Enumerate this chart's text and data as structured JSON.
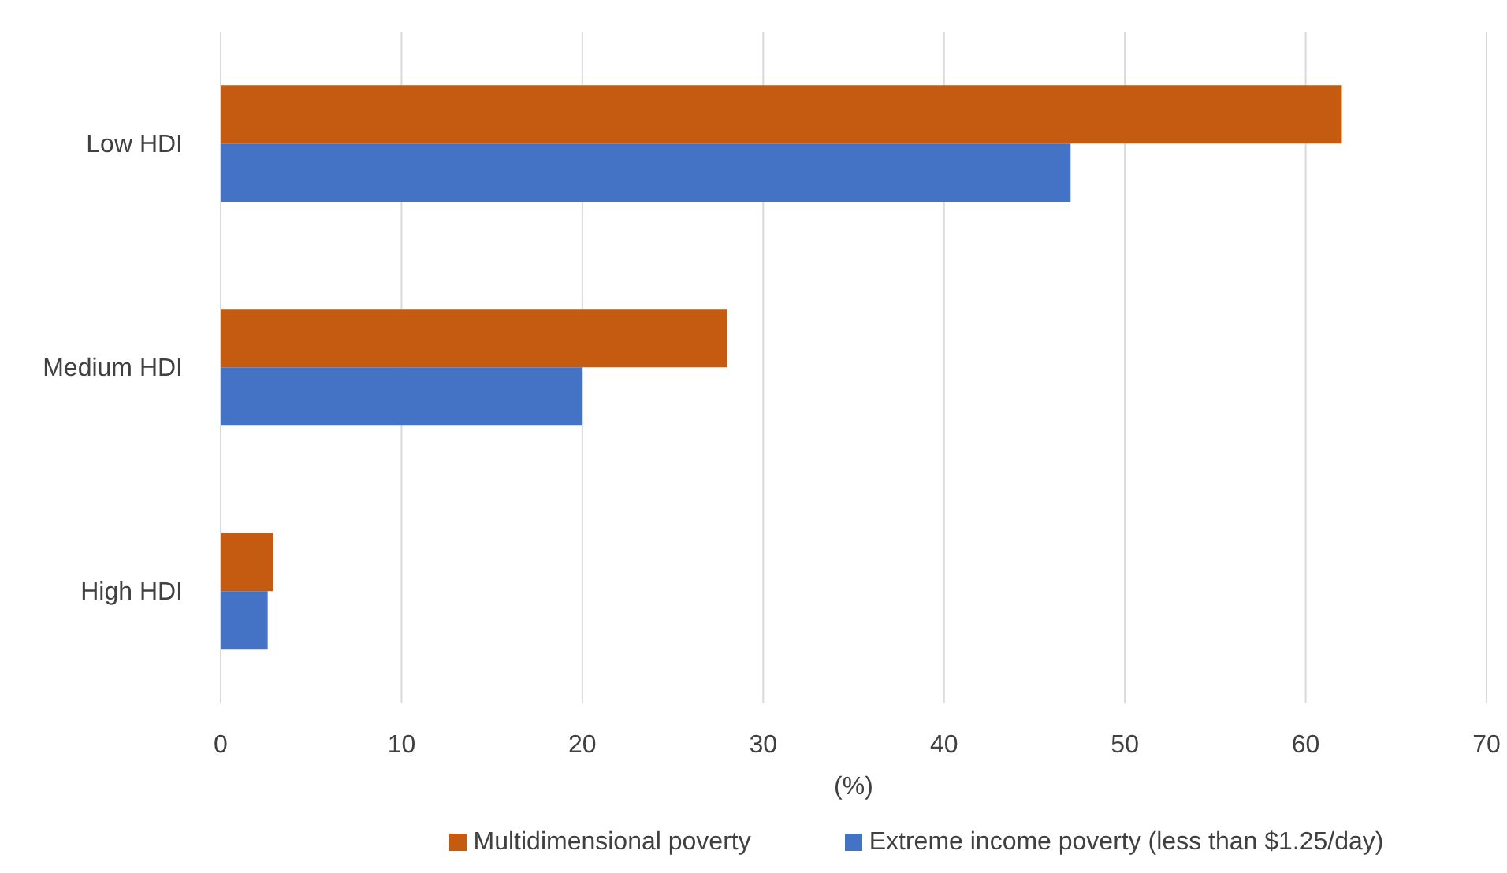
{
  "chart_data": {
    "type": "bar",
    "orientation": "horizontal",
    "xlabel": "(%)",
    "categories": [
      "Low HDI",
      "Medium HDI",
      "High HDI"
    ],
    "series": [
      {
        "name": "Multidimensional poverty",
        "color": "#c55a11",
        "values": [
          62,
          28,
          2.9
        ]
      },
      {
        "name": "Extreme income poverty (less than $1.25/day)",
        "color": "#4472c4",
        "values": [
          47,
          20,
          2.6
        ]
      }
    ],
    "xlim": [
      0,
      70
    ],
    "xticks": [
      0,
      10,
      20,
      30,
      40,
      50,
      60,
      70
    ],
    "grid": "x",
    "legend": "bottom"
  }
}
